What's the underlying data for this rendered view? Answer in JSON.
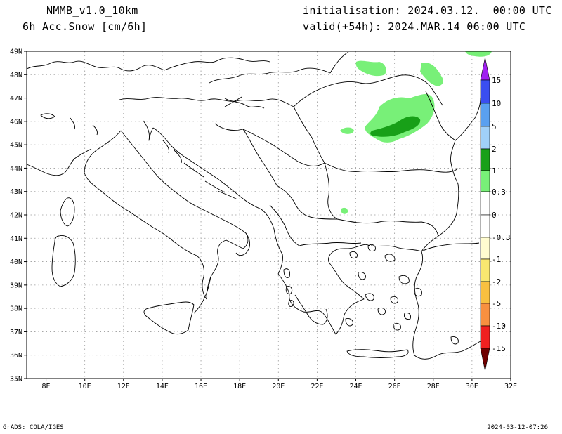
{
  "header": {
    "model": "NMMB_v1.0_10km",
    "variable": "6h Acc.Snow [cm/6h]",
    "init": "initialisation: 2024.03.12.  00:00 UTC",
    "valid": "valid(+54h): 2024.MAR.14 06:00 UTC"
  },
  "footer": {
    "left": "GrADS: COLA/IGES",
    "right": "2024-03-12-07:26"
  },
  "map": {
    "lon_range": [
      7,
      32
    ],
    "lat_range": [
      35,
      49
    ],
    "lon_ticks": [
      "8E",
      "10E",
      "12E",
      "14E",
      "16E",
      "18E",
      "20E",
      "22E",
      "24E",
      "26E",
      "28E",
      "30E",
      "32E"
    ],
    "lat_ticks": [
      "35N",
      "36N",
      "37N",
      "38N",
      "39N",
      "40N",
      "41N",
      "42N",
      "43N",
      "44N",
      "45N",
      "46N",
      "47N",
      "48N",
      "49N"
    ],
    "grid": "dotted"
  },
  "colorbar": {
    "labels": [
      "15",
      "10",
      "5",
      "2",
      "1",
      "0.3",
      "0",
      "-0.3",
      "-1",
      "-2",
      "-5",
      "-10",
      "-15"
    ],
    "colors": {
      "c15": "#a020f0",
      "c10": "#3a4ef0",
      "c5": "#5aa0f0",
      "c2": "#a0d0f8",
      "c1": "#18a018",
      "c03": "#78f078",
      "c0": "#ffffff",
      "cn03": "#fffcd0",
      "cn1": "#f8e870",
      "cn2": "#f8c040",
      "cn5": "#f89040",
      "cn10": "#f02020",
      "cn15": "#b00000",
      "cn20": "#700000"
    }
  }
}
